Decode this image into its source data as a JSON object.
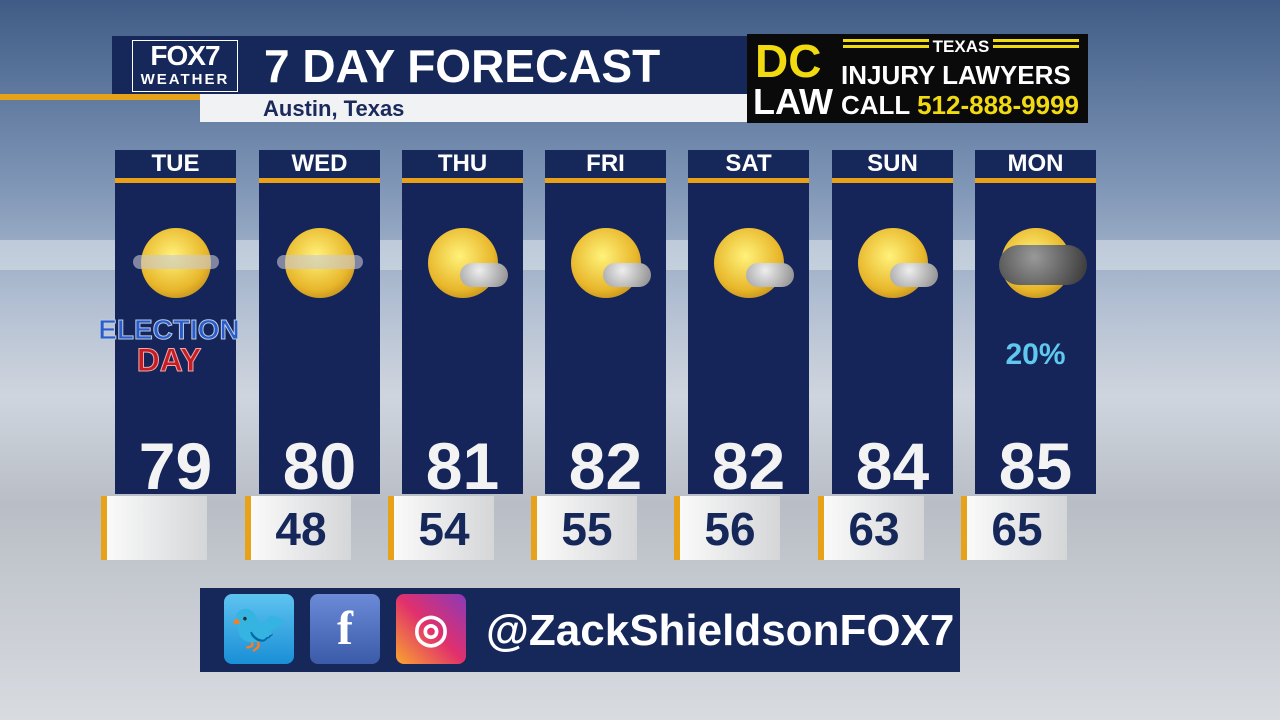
{
  "header": {
    "logo_line1": "FOX7",
    "logo_line2": "WEATHER",
    "title": "7 DAY FORECAST",
    "location": "Austin, Texas"
  },
  "ad": {
    "brand_top": "DC",
    "brand_bottom": "LAW",
    "region": "TEXAS",
    "tagline": "INJURY LAWYERS",
    "call_label": "CALL",
    "phone": "512-888-9999"
  },
  "colors": {
    "navy": "#16275a",
    "accent": "#e8a21a",
    "precip": "#5fc8ee",
    "ad_yellow": "#f2da10"
  },
  "days": [
    {
      "name": "TUE",
      "icon": "hazy-sun-icon",
      "high": "79",
      "low": "",
      "badge_line1": "ELECTION",
      "badge_line2": "DAY"
    },
    {
      "name": "WED",
      "icon": "hazy-sun-icon",
      "high": "80",
      "low": "48"
    },
    {
      "name": "THU",
      "icon": "mostly-sunny-icon",
      "high": "81",
      "low": "54"
    },
    {
      "name": "FRI",
      "icon": "mostly-sunny-icon",
      "high": "82",
      "low": "55"
    },
    {
      "name": "SAT",
      "icon": "mostly-sunny-icon",
      "high": "82",
      "low": "56"
    },
    {
      "name": "SUN",
      "icon": "mostly-sunny-icon",
      "high": "84",
      "low": "63"
    },
    {
      "name": "MON",
      "icon": "sun-storm-cloud-icon",
      "high": "85",
      "low": "65",
      "precip": "20%"
    }
  ],
  "social": {
    "handle": "@ZackShieldsonFOX7",
    "icons": [
      "twitter-icon",
      "facebook-icon",
      "instagram-icon"
    ]
  }
}
